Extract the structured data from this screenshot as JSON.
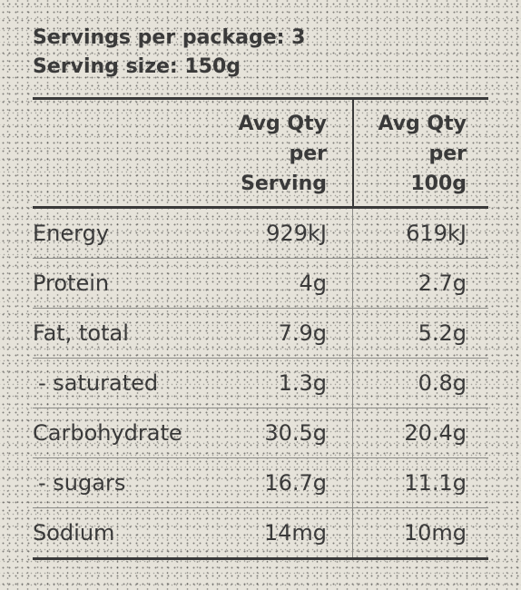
{
  "serving": {
    "servings_per_package": "Servings per package: 3",
    "serving_size": "Serving size: 150g"
  },
  "table": {
    "headers": {
      "per_serving": [
        "Avg Qty",
        "per",
        "Serving"
      ],
      "per_100g": [
        "Avg Qty",
        "per",
        "100g"
      ]
    },
    "rows": [
      {
        "label": "Energy",
        "per_serving": "929kJ",
        "per_100g": "619kJ",
        "sub": false
      },
      {
        "label": "Protein",
        "per_serving": "4g",
        "per_100g": "2.7g",
        "sub": false
      },
      {
        "label": "Fat, total",
        "per_serving": "7.9g",
        "per_100g": "5.2g",
        "sub": false
      },
      {
        "label": "- saturated",
        "per_serving": "1.3g",
        "per_100g": "0.8g",
        "sub": true
      },
      {
        "label": "Carbohydrate",
        "per_serving": "30.5g",
        "per_100g": "20.4g",
        "sub": false
      },
      {
        "label": "- sugars",
        "per_serving": "16.7g",
        "per_100g": "11.1g",
        "sub": true
      },
      {
        "label": "Sodium",
        "per_serving": "14mg",
        "per_100g": "10mg",
        "sub": false
      }
    ]
  },
  "colors": {
    "background": "#e6e3da",
    "text": "#3a3a3a",
    "rule": "#3a3a3a",
    "row_divider": "#8a8a86"
  }
}
